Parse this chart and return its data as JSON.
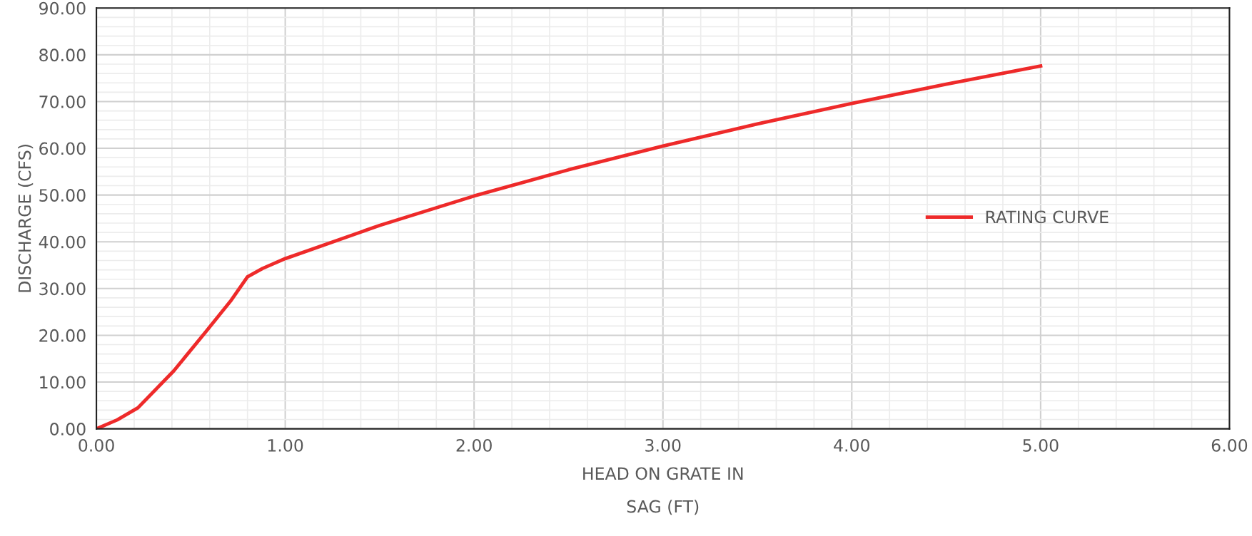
{
  "chart_data": {
    "type": "line",
    "xlabel": "HEAD ON GRATE IN\nSAG (FT)",
    "ylabel": "DISCHARGE (CFS)",
    "x": [
      0,
      0.11,
      0.22,
      0.41,
      0.58,
      0.71,
      0.8,
      0.88,
      1.0,
      1.5,
      2.0,
      2.5,
      3.0,
      3.5,
      4.0,
      4.5,
      5.0
    ],
    "series": [
      {
        "name": "RATING CURVE",
        "color": "#ee2a2a",
        "values": [
          0,
          1.9,
          4.5,
          12.4,
          20.8,
          27.3,
          32.5,
          34.3,
          36.4,
          43.5,
          49.8,
          55.4,
          60.5,
          65.2,
          69.6,
          73.7,
          77.6
        ]
      }
    ],
    "xlim": [
      0,
      6
    ],
    "ylim": [
      0,
      90
    ],
    "xticks": [
      {
        "value": 0,
        "label": "0.00"
      },
      {
        "value": 1,
        "label": "1.00"
      },
      {
        "value": 2,
        "label": "2.00"
      },
      {
        "value": 3,
        "label": "3.00"
      },
      {
        "value": 4,
        "label": "4.00"
      },
      {
        "value": 5,
        "label": "5.00"
      },
      {
        "value": 6,
        "label": "6.00"
      }
    ],
    "yticks": [
      {
        "value": 0,
        "label": "0.00"
      },
      {
        "value": 10,
        "label": "10.00"
      },
      {
        "value": 20,
        "label": "20.00"
      },
      {
        "value": 30,
        "label": "30.00"
      },
      {
        "value": 40,
        "label": "40.00"
      },
      {
        "value": 50,
        "label": "50.00"
      },
      {
        "value": 60,
        "label": "60.00"
      },
      {
        "value": 70,
        "label": "70.00"
      },
      {
        "value": 80,
        "label": "80.00"
      },
      {
        "value": 90,
        "label": "90.00"
      }
    ],
    "grid": true,
    "legend": "right",
    "marker": "none",
    "line_style": "solid"
  }
}
